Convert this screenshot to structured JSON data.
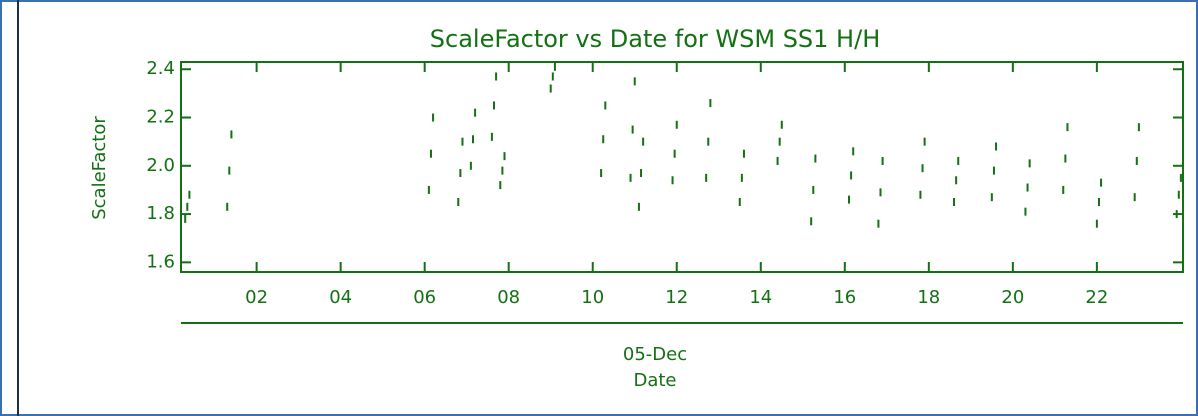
{
  "chart_data": {
    "type": "scatter",
    "title": "ScaleFactor vs Date for WSM SS1 H/H",
    "ylabel": "ScaleFactor",
    "xlabel": "Date",
    "date_label": "05-Dec",
    "color": "#137013",
    "xlim": [
      0.2,
      24.05
    ],
    "ylim": [
      1.56,
      2.43
    ],
    "xticks": [
      {
        "value": 2,
        "label": "02"
      },
      {
        "value": 4,
        "label": "04"
      },
      {
        "value": 6,
        "label": "06"
      },
      {
        "value": 8,
        "label": "08"
      },
      10,
      12,
      14,
      16,
      18,
      20,
      22
    ],
    "yticks": [
      1.6,
      1.8,
      {
        "value": 2,
        "label": "2.0"
      },
      2.2,
      2.4
    ],
    "x": [
      0.3,
      0.35,
      0.4,
      1.3,
      1.35,
      1.4,
      6.1,
      6.15,
      6.2,
      6.8,
      6.85,
      6.9,
      7.1,
      7.15,
      7.2,
      7.6,
      7.65,
      7.7,
      7.8,
      7.85,
      7.9,
      9.0,
      9.05,
      9.1,
      10.2,
      10.25,
      10.3,
      10.9,
      10.95,
      11.0,
      11.1,
      11.15,
      11.2,
      11.9,
      11.95,
      12.0,
      12.7,
      12.75,
      12.8,
      13.5,
      13.55,
      13.6,
      14.4,
      14.45,
      14.5,
      15.2,
      15.25,
      15.3,
      16.1,
      16.15,
      16.2,
      16.8,
      16.85,
      16.9,
      17.8,
      17.85,
      17.9,
      18.6,
      18.65,
      18.7,
      19.5,
      19.55,
      19.6,
      20.3,
      20.35,
      20.4,
      21.2,
      21.25,
      21.3,
      22.0,
      22.05,
      22.1,
      22.9,
      22.95,
      23.0,
      23.9,
      23.95,
      24.0
    ],
    "values": [
      1.78,
      1.83,
      1.88,
      1.83,
      1.98,
      2.13,
      1.9,
      2.05,
      2.2,
      1.85,
      1.97,
      2.1,
      2.0,
      2.11,
      2.22,
      2.12,
      2.25,
      2.37,
      1.92,
      1.98,
      2.04,
      2.32,
      2.37,
      2.41,
      1.97,
      2.11,
      2.25,
      1.95,
      2.15,
      2.35,
      1.83,
      1.97,
      2.1,
      1.94,
      2.05,
      2.17,
      1.95,
      2.1,
      2.26,
      1.85,
      1.95,
      2.05,
      2.02,
      2.1,
      2.17,
      1.77,
      1.9,
      2.03,
      1.86,
      1.96,
      2.06,
      1.76,
      1.89,
      2.02,
      1.88,
      1.99,
      2.1,
      1.85,
      1.94,
      2.02,
      1.87,
      1.98,
      2.08,
      1.81,
      1.91,
      2.01,
      1.9,
      2.03,
      2.16,
      1.76,
      1.85,
      1.93,
      1.87,
      2.02,
      2.16,
      1.8,
      1.88,
      1.95
    ]
  }
}
